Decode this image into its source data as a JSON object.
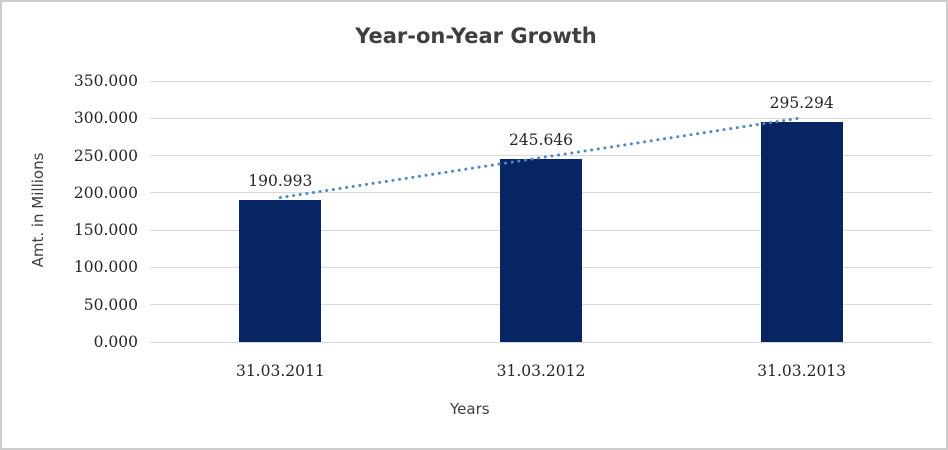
{
  "chart_data": {
    "type": "bar",
    "title": "Year-on-Year Growth",
    "xlabel": "Years",
    "ylabel": "Amt. in Millions",
    "categories": [
      "31.03.2011",
      "31.03.2012",
      "31.03.2013"
    ],
    "values": [
      190.993,
      245.646,
      295.294
    ],
    "value_labels": [
      "190.993",
      "245.646",
      "295.294"
    ],
    "yticks": [
      "0.000",
      "50.000",
      "100.000",
      "150.000",
      "200.000",
      "250.000",
      "300.000",
      "350.000"
    ],
    "ylim": [
      0,
      350
    ],
    "grid": true,
    "legend_position": "none",
    "trendline": {
      "type": "linear",
      "style": "dotted"
    },
    "colors": {
      "bar_fill": "#072563",
      "trend_dots": "#4f87c7",
      "gridline": "#d9d9d9",
      "title_text": "#3f3f3f",
      "axis_title_text": "#3f3f3f",
      "tick_text": "#262626",
      "background": "#ffffff",
      "frame_border": "#cdcdcd"
    }
  }
}
